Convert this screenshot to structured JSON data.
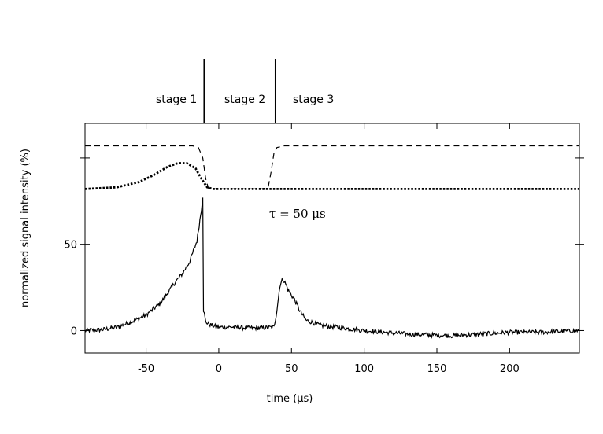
{
  "chart_data": {
    "type": "line",
    "xlabel": "time (μs)",
    "ylabel": "normalized signal intensity (%)",
    "xlim": [
      -92,
      248
    ],
    "ylim": [
      -13,
      120
    ],
    "x_ticks": [
      -50,
      0,
      50,
      100,
      150,
      200
    ],
    "y_ticks": [
      0,
      50
    ],
    "y_minor_ticks": [
      100
    ],
    "grid": false,
    "annotations": {
      "tau": "τ = 50  μs",
      "stage_markers_x": [
        -10,
        39
      ],
      "stages": [
        "stage 1",
        "stage 2",
        "stage 3"
      ]
    },
    "series": [
      {
        "style": "solid",
        "points": [
          [
            -92,
            0
          ],
          [
            -80,
            0.5
          ],
          [
            -70,
            2
          ],
          [
            -60,
            5
          ],
          [
            -50,
            9
          ],
          [
            -40,
            16
          ],
          [
            -30,
            28
          ],
          [
            -25,
            33
          ],
          [
            -20,
            40
          ],
          [
            -15,
            52
          ],
          [
            -12,
            70
          ],
          [
            -11,
            78
          ],
          [
            -10.5,
            12
          ],
          [
            -9,
            5
          ],
          [
            -5,
            3
          ],
          [
            0,
            2
          ],
          [
            10,
            2
          ],
          [
            20,
            1.5
          ],
          [
            30,
            1.5
          ],
          [
            38,
            2
          ],
          [
            40,
            12
          ],
          [
            42,
            26
          ],
          [
            44,
            30
          ],
          [
            46,
            27
          ],
          [
            48,
            23
          ],
          [
            52,
            18
          ],
          [
            56,
            11
          ],
          [
            60,
            6
          ],
          [
            70,
            3
          ],
          [
            80,
            2
          ],
          [
            100,
            0
          ],
          [
            130,
            -2
          ],
          [
            160,
            -3
          ],
          [
            180,
            -2
          ],
          [
            200,
            -1
          ],
          [
            220,
            -1
          ],
          [
            248,
            0
          ]
        ]
      },
      {
        "style": "dashed",
        "points": [
          [
            -92,
            107
          ],
          [
            -18,
            107
          ],
          [
            -14,
            106
          ],
          [
            -11,
            100
          ],
          [
            -9,
            88
          ],
          [
            -7,
            82
          ],
          [
            0,
            82
          ],
          [
            30,
            82
          ],
          [
            34,
            83
          ],
          [
            36,
            92
          ],
          [
            38,
            103
          ],
          [
            40,
            106
          ],
          [
            45,
            107
          ],
          [
            248,
            107
          ]
        ]
      },
      {
        "style": "dotted",
        "points": [
          [
            -92,
            82
          ],
          [
            -70,
            83
          ],
          [
            -55,
            86
          ],
          [
            -45,
            90
          ],
          [
            -35,
            95
          ],
          [
            -28,
            97
          ],
          [
            -22,
            97
          ],
          [
            -16,
            94
          ],
          [
            -12,
            88
          ],
          [
            -8,
            83
          ],
          [
            -4,
            82
          ],
          [
            248,
            82
          ]
        ]
      }
    ]
  }
}
